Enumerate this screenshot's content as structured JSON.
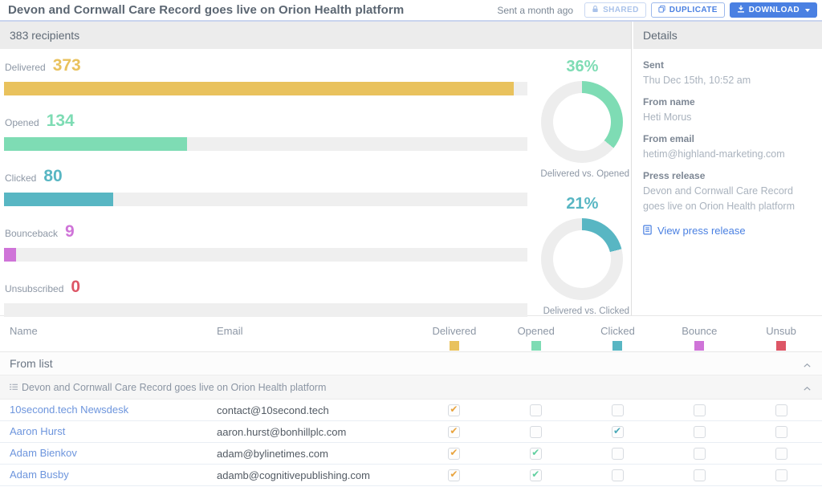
{
  "header": {
    "title": "Devon and Cornwall Care Record goes live on Orion Health platform",
    "sent_ago": "Sent a month ago",
    "buttons": {
      "shared": "SHARED",
      "duplicate": "DUPLICATE",
      "download": "DOWNLOAD"
    }
  },
  "recipients_bar": {
    "label": "383 recipients"
  },
  "stats": {
    "total_recipients": 383,
    "items": [
      {
        "label": "Delivered",
        "value": "373",
        "pct": 97.4,
        "color": "#e9c25d"
      },
      {
        "label": "Opened",
        "value": "134",
        "pct": 35.0,
        "color": "#7edcb4"
      },
      {
        "label": "Clicked",
        "value": "80",
        "pct": 20.9,
        "color": "#58b6c3"
      },
      {
        "label": "Bounceback",
        "value": "9",
        "pct": 2.3,
        "color": "#cf74d8"
      },
      {
        "label": "Unsubscribed",
        "value": "0",
        "pct": 0,
        "color": "#dd5666"
      }
    ],
    "track_color": "#efefef"
  },
  "donuts": [
    {
      "label": "36%",
      "pct": 36,
      "color": "#7edcb4",
      "caption": "Delivered vs. Opened"
    },
    {
      "label": "21%",
      "pct": 21,
      "color": "#58b6c3",
      "caption": "Delivered vs. Clicked"
    }
  ],
  "details": {
    "title": "Details",
    "sent_label": "Sent",
    "sent_value": "Thu Dec 15th, 10:52 am",
    "from_name_label": "From name",
    "from_name_value": "Heti Morus",
    "from_email_label": "From email",
    "from_email_value": "hetim@highland-marketing.com",
    "press_release_label": "Press release",
    "press_release_value": "Devon and Cornwall Care Record goes live on Orion Health platform",
    "view_link": "View press release"
  },
  "table": {
    "group_label": "From list",
    "subgroup_label": "Devon and Cornwall Care Record goes live on Orion Health platform",
    "columns": [
      {
        "label": "Name",
        "key": "name"
      },
      {
        "label": "Email",
        "key": "email"
      },
      {
        "label": "Delivered",
        "key": "delivered",
        "color": "#e9c25d",
        "check_color": "#e8a33d"
      },
      {
        "label": "Opened",
        "key": "opened",
        "color": "#7edcb4",
        "check_color": "#5fcf9f"
      },
      {
        "label": "Clicked",
        "key": "clicked",
        "color": "#58b6c3",
        "check_color": "#4aa9b8"
      },
      {
        "label": "Bounce",
        "key": "bounce",
        "color": "#cf74d8",
        "check_color": "#cf74d8"
      },
      {
        "label": "Unsub",
        "key": "unsub",
        "color": "#dd5666",
        "check_color": "#dd5666"
      }
    ],
    "rows": [
      {
        "name": "10second.tech Newsdesk",
        "email": "contact@10second.tech",
        "delivered": true,
        "opened": false,
        "clicked": false,
        "bounce": false,
        "unsub": false
      },
      {
        "name": "Aaron Hurst",
        "email": "aaron.hurst@bonhillplc.com",
        "delivered": true,
        "opened": false,
        "clicked": true,
        "bounce": false,
        "unsub": false
      },
      {
        "name": "Adam Bienkov",
        "email": "adam@bylinetimes.com",
        "delivered": true,
        "opened": true,
        "clicked": false,
        "bounce": false,
        "unsub": false
      },
      {
        "name": "Adam Busby",
        "email": "adamb@cognitivepublishing.com",
        "delivered": true,
        "opened": true,
        "clicked": false,
        "bounce": false,
        "unsub": false
      }
    ]
  },
  "icons": {
    "shared": "lock-icon",
    "duplicate": "copy-icon",
    "download": "download-icon",
    "download_menu": "caret-down-icon",
    "view_press_release": "document-icon",
    "subgroup": "list-icon",
    "collapse": "chevron-up-icon"
  },
  "colors": {
    "accent_blue": "#4a80e2",
    "header_divider": "#c9d4ee",
    "section_bar_bg": "#ececec",
    "donut_track": "#ededed"
  }
}
